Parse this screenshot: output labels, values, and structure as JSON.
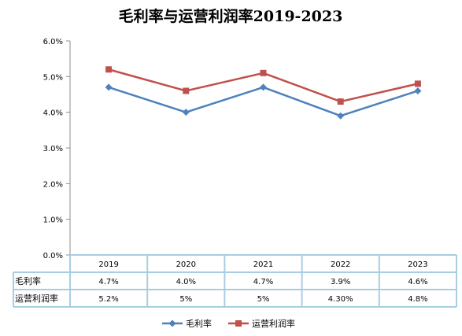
{
  "chart_data": {
    "type": "line",
    "title": "毛利率与运营利润率2019-2023",
    "categories": [
      "2019",
      "2020",
      "2021",
      "2022",
      "2023"
    ],
    "ylim": [
      0,
      6
    ],
    "yticks": [
      "0.0%",
      "1.0%",
      "2.0%",
      "3.0%",
      "4.0%",
      "5.0%",
      "6.0%"
    ],
    "grid": false,
    "legend_position": "bottom",
    "series": [
      {
        "name": "毛利率",
        "values": [
          4.7,
          4.0,
          4.7,
          3.9,
          4.6
        ],
        "color": "#4F81BD",
        "marker": "diamond"
      },
      {
        "name": "运营利润率",
        "values": [
          5.2,
          4.6,
          5.1,
          4.3,
          4.8
        ],
        "color": "#C0504D",
        "marker": "square"
      }
    ],
    "data_table": {
      "rows": [
        {
          "label": "毛利率",
          "cells": [
            "4.7%",
            "4.0%",
            "4.7%",
            "3.9%",
            "4.6%"
          ]
        },
        {
          "label": "运营利润率",
          "cells": [
            "5.2%",
            "5%",
            "5%",
            "4.30%",
            "4.8%"
          ]
        }
      ]
    }
  }
}
